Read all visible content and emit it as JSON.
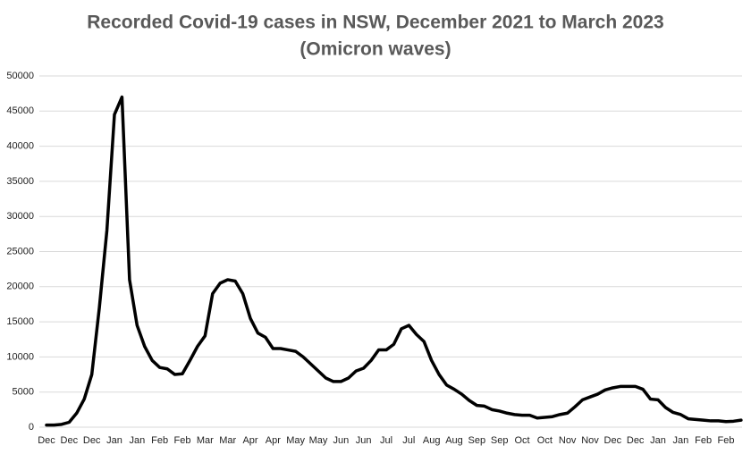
{
  "chart_data": {
    "type": "line",
    "title": "Recorded Covid-19 cases in NSW, December 2021 to March 2023",
    "subtitle": "(Omicron waves)",
    "categories": [
      "Dec",
      null,
      null,
      "Dec",
      null,
      null,
      "Dec",
      null,
      null,
      "Jan",
      null,
      null,
      "Jan",
      null,
      null,
      "Feb",
      null,
      null,
      "Feb",
      null,
      null,
      "Mar",
      null,
      null,
      "Mar",
      null,
      null,
      "Apr",
      null,
      null,
      "Apr",
      null,
      null,
      "May",
      null,
      null,
      "May",
      null,
      null,
      "Jun",
      null,
      null,
      "Jun",
      null,
      null,
      "Jul",
      null,
      null,
      "Jul",
      null,
      null,
      "Aug",
      null,
      null,
      "Aug",
      null,
      null,
      "Sep",
      null,
      null,
      "Sep",
      null,
      null,
      "Oct",
      null,
      null,
      "Oct",
      null,
      null,
      "Nov",
      null,
      null,
      "Nov",
      null,
      null,
      "Dec",
      null,
      null,
      "Dec",
      null,
      null,
      "Jan",
      null,
      null,
      "Jan",
      null,
      null,
      "Feb",
      null,
      null,
      "Feb",
      null,
      null
    ],
    "values": [
      300,
      300,
      400,
      700,
      2000,
      4000,
      7500,
      17000,
      28000,
      44500,
      47000,
      21000,
      14500,
      11500,
      9500,
      8500,
      8300,
      7500,
      7600,
      9500,
      11500,
      13000,
      19000,
      20500,
      21000,
      20800,
      19000,
      15500,
      13400,
      12800,
      11200,
      11200,
      11000,
      10800,
      10000,
      9000,
      8000,
      7000,
      6500,
      6500,
      7000,
      8000,
      8400,
      9500,
      11000,
      11000,
      11800,
      14000,
      14500,
      13200,
      12200,
      9500,
      7500,
      6000,
      5400,
      4700,
      3800,
      3100,
      3000,
      2500,
      2300,
      2000,
      1800,
      1700,
      1700,
      1300,
      1400,
      1500,
      1800,
      2000,
      2900,
      3900,
      4300,
      4700,
      5300,
      5600,
      5800,
      5800,
      5800,
      5400,
      4000,
      3900,
      2800,
      2100,
      1800,
      1200,
      1100,
      1000,
      900,
      900,
      800,
      850,
      1000
    ],
    "color": "#000000",
    "ylim": [
      0,
      50000
    ],
    "yticks": [
      0,
      5000,
      10000,
      15000,
      20000,
      25000,
      30000,
      35000,
      40000,
      45000,
      50000
    ],
    "grid": true
  }
}
